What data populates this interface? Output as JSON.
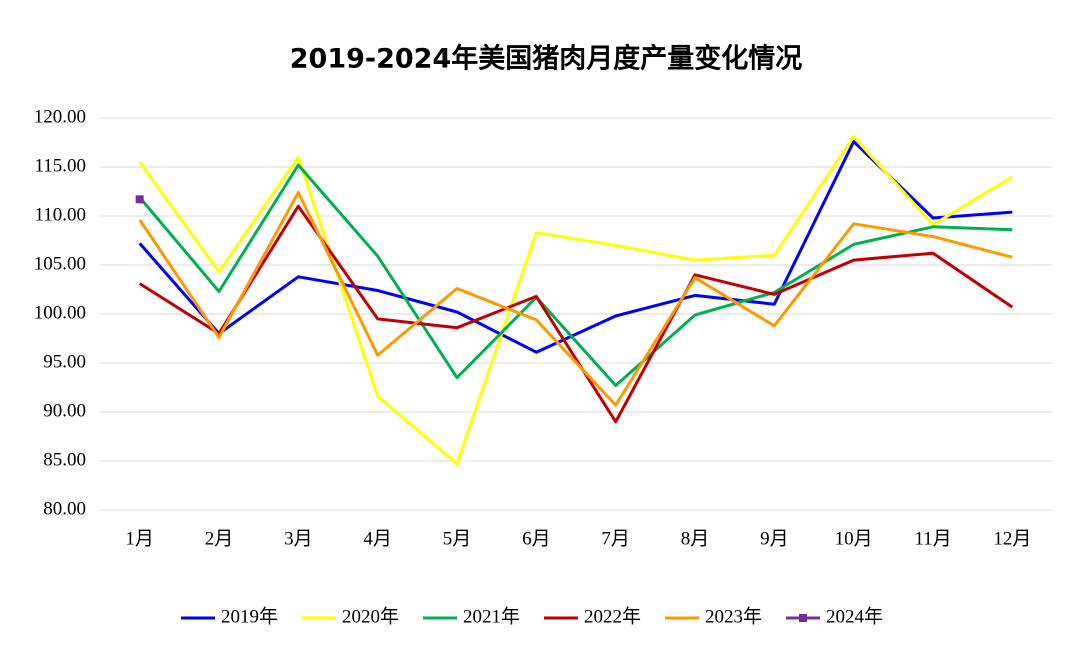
{
  "chart_data": {
    "type": "line",
    "title": "2019-2024年美国猪肉月度产量变化情况",
    "categories": [
      "1月",
      "2月",
      "3月",
      "4月",
      "5月",
      "6月",
      "7月",
      "8月",
      "9月",
      "10月",
      "11月",
      "12月"
    ],
    "ylim": [
      80,
      120
    ],
    "yticks": [
      {
        "value": 80,
        "label": "80.00"
      },
      {
        "value": 85,
        "label": "85.00"
      },
      {
        "value": 90,
        "label": "90.00"
      },
      {
        "value": 95,
        "label": "95.00"
      },
      {
        "value": 100,
        "label": "100.00"
      },
      {
        "value": 105,
        "label": "105.00"
      },
      {
        "value": 110,
        "label": "110.00"
      },
      {
        "value": 115,
        "label": "115.00"
      },
      {
        "value": 120,
        "label": "120.00"
      }
    ],
    "grid": true,
    "legend": "bottom",
    "series": [
      {
        "name": "2019年",
        "color": "#0000ff",
        "values": [
          107.2,
          98.0,
          103.8,
          102.4,
          100.2,
          96.1,
          99.8,
          101.9,
          101.0,
          117.6,
          109.8,
          110.4
        ]
      },
      {
        "name": "2020年",
        "color": "#ffff00",
        "values": [
          115.5,
          104.3,
          116.0,
          91.6,
          84.7,
          108.3,
          107.0,
          105.5,
          106.0,
          118.1,
          109.1,
          114.0
        ]
      },
      {
        "name": "2021年",
        "color": "#00b050",
        "values": [
          111.9,
          102.3,
          115.2,
          105.9,
          93.5,
          101.7,
          92.7,
          99.9,
          102.2,
          107.1,
          108.9,
          108.6
        ]
      },
      {
        "name": "2022年",
        "color": "#c00000",
        "values": [
          103.1,
          98.0,
          111.0,
          99.5,
          98.6,
          101.8,
          89.0,
          104.0,
          102.0,
          105.5,
          106.2,
          100.7
        ]
      },
      {
        "name": "2023年",
        "color": "#ff9900",
        "values": [
          109.6,
          97.6,
          112.4,
          95.8,
          102.6,
          99.4,
          90.7,
          103.7,
          98.8,
          109.2,
          107.9,
          105.8
        ]
      },
      {
        "name": "2024年",
        "color": "#7030a0",
        "marker": "square",
        "values": [
          111.7,
          null,
          null,
          null,
          null,
          null,
          null,
          null,
          null,
          null,
          null,
          null
        ]
      }
    ]
  }
}
